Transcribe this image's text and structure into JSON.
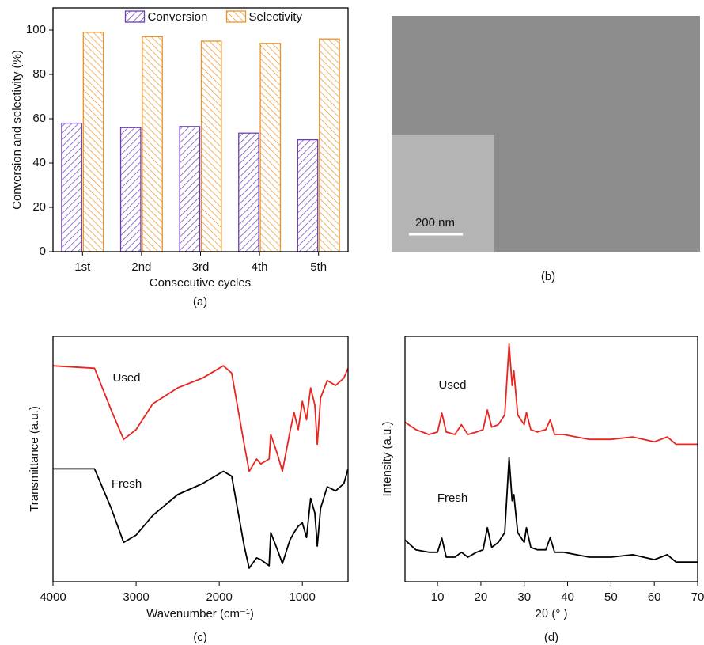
{
  "chart_data": [
    {
      "type": "bar",
      "caption": "(a)",
      "xlabel": "Consecutive cycles",
      "ylabel": "Conversion and selectivity (%)",
      "categories": [
        "1st",
        "2nd",
        "3rd",
        "4th",
        "5th"
      ],
      "series": [
        {
          "name": "Conversion",
          "color": "#6a3fb5",
          "values": [
            58,
            56,
            56.5,
            53.5,
            50.5
          ]
        },
        {
          "name": "Selectivity",
          "color": "#e8942a",
          "values": [
            99,
            97,
            95,
            94,
            96
          ]
        }
      ],
      "ylim": [
        0,
        110
      ],
      "yticks": [
        0,
        20,
        40,
        60,
        80,
        100
      ],
      "legend": "top"
    },
    {
      "type": "image",
      "scale_bar": "200 nm",
      "caption": "(b)"
    },
    {
      "type": "line",
      "caption": "(c)",
      "xlabel": "Wavenumber (cm⁻¹)",
      "ylabel": "Transmittance (a.u.)",
      "x": [
        4000,
        3500,
        3300,
        3150,
        3000,
        2800,
        2500,
        2200,
        1950,
        1850,
        1700,
        1640,
        1550,
        1500,
        1400,
        1380,
        1300,
        1240,
        1150,
        1100,
        1050,
        1000,
        950,
        900,
        850,
        820,
        780,
        700,
        600,
        500,
        450
      ],
      "series": [
        {
          "name": "Used",
          "color": "#e8251f",
          "values": [
            88,
            87,
            70,
            58,
            62,
            72.5,
            79,
            83,
            88,
            85,
            56,
            45,
            50,
            48,
            50,
            60,
            52,
            45,
            61,
            69,
            62,
            73.5,
            66,
            79,
            72,
            56,
            75,
            82,
            80,
            83,
            87
          ]
        },
        {
          "name": "Fresh",
          "color": "#000000",
          "values": [
            46,
            46,
            30,
            16,
            19,
            27,
            35.5,
            40,
            45,
            43,
            14.5,
            5.5,
            9.7,
            9,
            6.5,
            20,
            13,
            7.4,
            17,
            20,
            22.6,
            24,
            18,
            34,
            28,
            14.5,
            30,
            38.7,
            37,
            40,
            46
          ]
        }
      ],
      "xlim": [
        4000,
        450
      ],
      "xticks": [
        4000,
        3000,
        2000,
        1000
      ],
      "ylim": [
        0,
        100
      ]
    },
    {
      "type": "line",
      "caption": "(d)",
      "xlabel": "2θ (° )",
      "ylabel": "Intensity (a.u.)",
      "x": [
        2.5,
        5,
        8,
        10,
        11,
        12,
        14,
        15.5,
        17,
        19,
        20.5,
        21.5,
        22.5,
        24,
        25.5,
        26.5,
        27.2,
        27.6,
        28.5,
        30,
        30.5,
        31.5,
        33,
        35,
        36,
        37,
        39,
        42,
        45,
        50,
        55,
        60,
        63,
        65,
        70
      ],
      "series": [
        {
          "name": "Used",
          "color": "#e8251f",
          "values": [
            65,
            62,
            60,
            61,
            68.7,
            61,
            60,
            64,
            60,
            61,
            62,
            70,
            63,
            64,
            68,
            96.8,
            80,
            86,
            68,
            64,
            69,
            62,
            61,
            62,
            66,
            60,
            60,
            59,
            58,
            58,
            59,
            57,
            59,
            56,
            56
          ]
        },
        {
          "name": "Fresh",
          "color": "#000000",
          "values": [
            17,
            13,
            12,
            12,
            17.7,
            10,
            10,
            12,
            10,
            12,
            13,
            22,
            14,
            16,
            20,
            50.6,
            33,
            35.5,
            20,
            16,
            22,
            14,
            13,
            13,
            18,
            12,
            12,
            11,
            10,
            10,
            11,
            9,
            11,
            8,
            8
          ]
        }
      ],
      "xlim": [
        2.5,
        70
      ],
      "xticks": [
        10,
        20,
        30,
        40,
        50,
        60,
        70
      ],
      "ylim": [
        0,
        100
      ]
    }
  ]
}
